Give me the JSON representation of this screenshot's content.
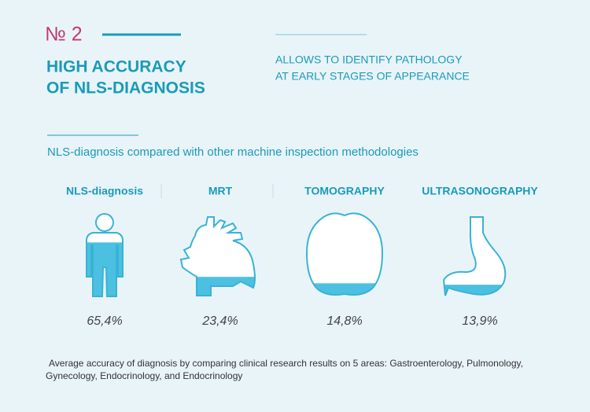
{
  "header": {
    "number": "№ 2",
    "title_lines": [
      "HIGH ACCURACY",
      "OF NLS-DIAGNOSIS"
    ],
    "tagline_lines": [
      "ALLOWS TO IDENTIFY PATHOLOGY",
      "AT EARLY STAGES OF APPEARANCE"
    ]
  },
  "subtitle": "NLS-diagnosis compared with other machine inspection methodologies",
  "methods": [
    {
      "name": "NLS-diagnosis",
      "value": 65.4,
      "value_label": "65,4%"
    },
    {
      "name": "MRT",
      "value": 23.4,
      "value_label": "23,4%"
    },
    {
      "name": "TOMOGRAPHY",
      "value": 14.8,
      "value_label": "14,8%"
    },
    {
      "name": "ULTRASONOGRAPHY",
      "value": 13.9,
      "value_label": "13,9%"
    }
  ],
  "footnote_lines": [
    "Average accuracy of diagnosis by comparing clinical research results on 5 areas: Gastroenterology, Pulmonology,",
    "Gynecology, Endocrinology, and Endocrinology"
  ]
}
